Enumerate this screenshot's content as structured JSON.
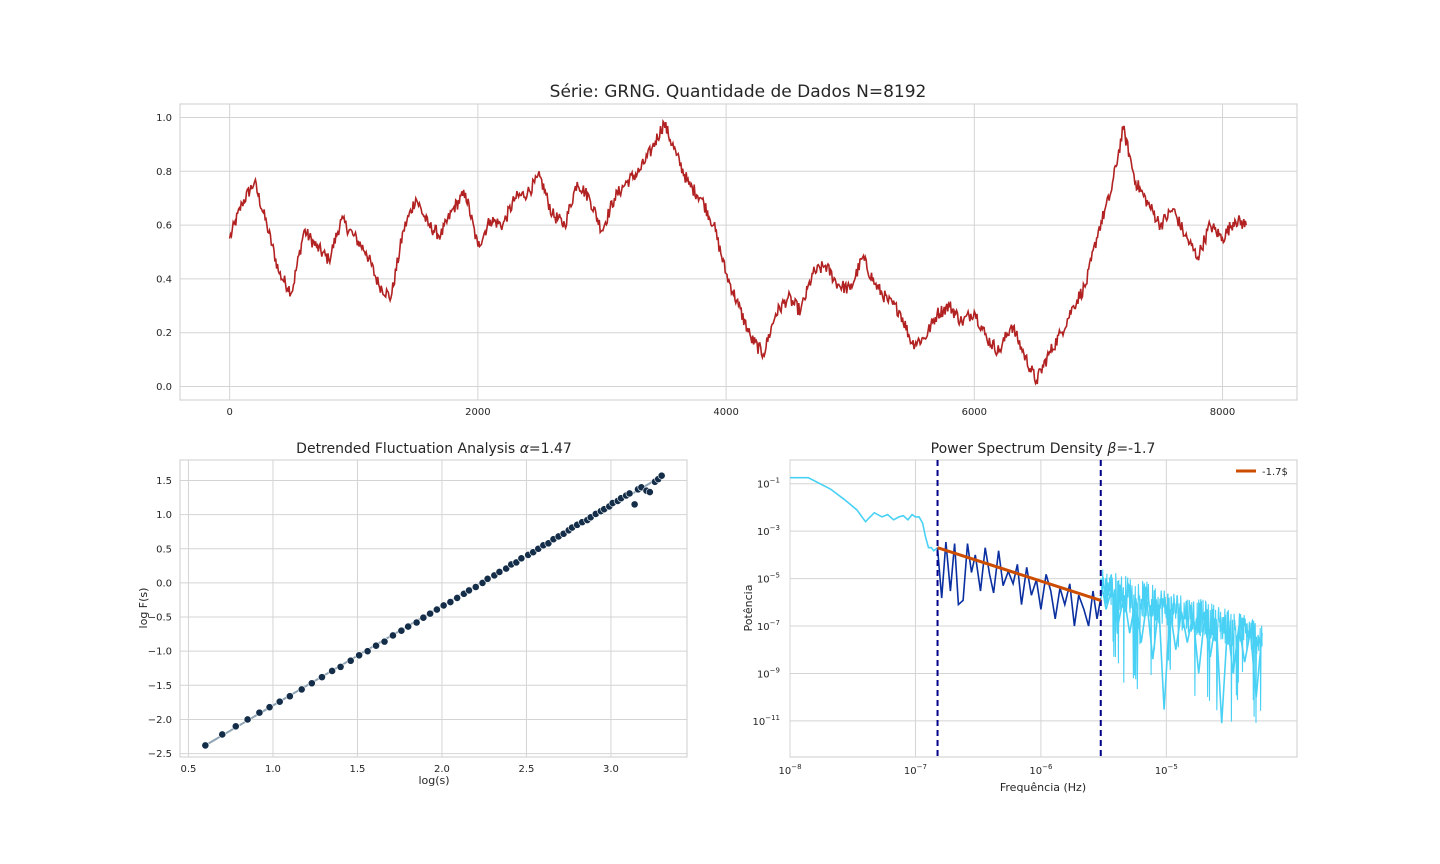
{
  "chart_data": [
    {
      "type": "line",
      "title": "Série: GRNG. Quantidade de Dados N=8192",
      "xlabel": "",
      "ylabel": "",
      "xlim": [
        -400,
        8600
      ],
      "ylim": [
        -0.05,
        1.05
      ],
      "xticks": [
        0,
        2000,
        4000,
        6000,
        8000
      ],
      "yticks": [
        0.0,
        0.2,
        0.4,
        0.6,
        0.8,
        1.0
      ],
      "grid": true,
      "color": "#b22222",
      "series": [
        {
          "x": [
            0,
            100,
            200,
            300,
            400,
            500,
            600,
            700,
            800,
            900,
            1000,
            1100,
            1200,
            1300,
            1400,
            1500,
            1600,
            1700,
            1800,
            1900,
            2000,
            2100,
            2200,
            2300,
            2400,
            2500,
            2600,
            2700,
            2800,
            2900,
            3000,
            3100,
            3200,
            3300,
            3400,
            3500,
            3600,
            3700,
            3800,
            3900,
            4000,
            4100,
            4200,
            4300,
            4400,
            4500,
            4600,
            4700,
            4800,
            4900,
            5000,
            5100,
            5200,
            5300,
            5400,
            5500,
            5600,
            5700,
            5800,
            5900,
            6000,
            6100,
            6200,
            6300,
            6400,
            6500,
            6600,
            6700,
            6800,
            6900,
            7000,
            7100,
            7200,
            7300,
            7400,
            7500,
            7600,
            7700,
            7800,
            7900,
            8000,
            8100,
            8191
          ],
          "values": [
            0.55,
            0.68,
            0.76,
            0.6,
            0.42,
            0.35,
            0.58,
            0.52,
            0.47,
            0.62,
            0.56,
            0.5,
            0.38,
            0.33,
            0.58,
            0.7,
            0.6,
            0.56,
            0.66,
            0.72,
            0.52,
            0.62,
            0.6,
            0.7,
            0.72,
            0.78,
            0.64,
            0.6,
            0.76,
            0.7,
            0.58,
            0.7,
            0.76,
            0.8,
            0.88,
            0.98,
            0.86,
            0.75,
            0.7,
            0.6,
            0.42,
            0.3,
            0.18,
            0.12,
            0.27,
            0.33,
            0.28,
            0.42,
            0.45,
            0.38,
            0.36,
            0.48,
            0.38,
            0.32,
            0.28,
            0.16,
            0.18,
            0.27,
            0.3,
            0.24,
            0.28,
            0.18,
            0.13,
            0.23,
            0.12,
            0.02,
            0.12,
            0.2,
            0.3,
            0.38,
            0.58,
            0.72,
            0.96,
            0.76,
            0.68,
            0.6,
            0.66,
            0.56,
            0.48,
            0.6,
            0.55,
            0.62,
            0.6
          ]
        }
      ]
    },
    {
      "type": "scatter",
      "title": "Detrended Fluctuation Analysis",
      "title_symbol": "α",
      "title_value": "=1.47",
      "xlabel": "log(s)",
      "ylabel": "log F(s)",
      "xlim": [
        0.45,
        3.45
      ],
      "ylim": [
        -2.55,
        1.8
      ],
      "xticks": [
        0.5,
        1.0,
        1.5,
        2.0,
        2.5,
        3.0
      ],
      "yticks": [
        -2.5,
        -2.0,
        -1.5,
        -1.0,
        -0.5,
        0.0,
        0.5,
        1.0,
        1.5
      ],
      "grid": true,
      "fit_line": {
        "x": [
          0.6,
          3.32
        ],
        "y": [
          -2.38,
          1.59
        ],
        "color": "#8fa4b4"
      },
      "point_color": "#142e4a",
      "points": {
        "x": [
          0.6,
          0.7,
          0.78,
          0.85,
          0.92,
          0.98,
          1.04,
          1.1,
          1.17,
          1.23,
          1.29,
          1.35,
          1.4,
          1.46,
          1.51,
          1.56,
          1.61,
          1.66,
          1.71,
          1.76,
          1.8,
          1.85,
          1.89,
          1.93,
          1.97,
          2.01,
          2.05,
          2.09,
          2.13,
          2.16,
          2.2,
          2.24,
          2.27,
          2.31,
          2.34,
          2.38,
          2.41,
          2.44,
          2.47,
          2.51,
          2.54,
          2.57,
          2.6,
          2.63,
          2.66,
          2.69,
          2.72,
          2.75,
          2.77,
          2.8,
          2.83,
          2.86,
          2.88,
          2.91,
          2.94,
          2.96,
          2.99,
          3.01,
          3.04,
          3.06,
          3.09,
          3.11,
          3.14,
          3.16,
          3.18,
          3.21,
          3.23,
          3.26,
          3.28,
          3.3
        ],
        "y": [
          -2.38,
          -2.22,
          -2.1,
          -2.0,
          -1.9,
          -1.82,
          -1.74,
          -1.66,
          -1.56,
          -1.47,
          -1.38,
          -1.29,
          -1.23,
          -1.14,
          -1.06,
          -1.0,
          -0.92,
          -0.86,
          -0.77,
          -0.7,
          -0.64,
          -0.58,
          -0.51,
          -0.45,
          -0.39,
          -0.33,
          -0.28,
          -0.22,
          -0.16,
          -0.11,
          -0.06,
          0.0,
          0.06,
          0.11,
          0.16,
          0.21,
          0.27,
          0.3,
          0.36,
          0.41,
          0.45,
          0.5,
          0.55,
          0.58,
          0.64,
          0.68,
          0.72,
          0.77,
          0.81,
          0.85,
          0.89,
          0.92,
          0.96,
          1.01,
          1.05,
          1.08,
          1.12,
          1.17,
          1.2,
          1.24,
          1.28,
          1.31,
          1.15,
          1.37,
          1.4,
          1.35,
          1.33,
          1.48,
          1.52,
          1.57
        ]
      }
    },
    {
      "type": "line",
      "title": "Power Spectrum Density",
      "title_symbol": "β",
      "title_value": "=-1.7",
      "xlabel": "Frequência (Hz)",
      "ylabel": "Potência",
      "x_scale": "log",
      "y_scale": "log",
      "xlim": [
        1e-08,
        0.00011
      ],
      "ylim": [
        3e-13,
        1.0
      ],
      "xticks": [
        1e-08,
        1e-07,
        1e-06,
        1e-05
      ],
      "xtick_labels": [
        [
          "10",
          "−8"
        ],
        [
          "10",
          "−7"
        ],
        [
          "10",
          "−6"
        ],
        [
          "10",
          "−5"
        ]
      ],
      "yticks": [
        1e-11,
        1e-09,
        1e-07,
        1e-05,
        0.001,
        0.1
      ],
      "ytick_labels": [
        [
          "10",
          "−11"
        ],
        [
          "10",
          "−9"
        ],
        [
          "10",
          "−7"
        ],
        [
          "10",
          "−5"
        ],
        [
          "10",
          "−3"
        ],
        [
          "10",
          "−1"
        ]
      ],
      "grid": true,
      "vlines": [
        1.5e-07,
        3e-06
      ],
      "vline_color": "#00008b",
      "legend": {
        "position": "top-right",
        "label": "-1.7$"
      },
      "fit": {
        "x": [
          1.5e-07,
          3e-06
        ],
        "y": [
          0.0002,
          1.2e-06
        ],
        "color": "#cc4c02"
      },
      "series": [
        {
          "color": "#48d1f5",
          "x": [
            1e-08,
            1.4e-08,
            2.1e-08,
            2.7e-08,
            3.4e-08,
            4e-08,
            4.7e-08,
            5.4e-08,
            6e-08,
            6.7e-08,
            7.4e-08,
            8e-08,
            8.7e-08,
            9.4e-08,
            1e-07,
            1.07e-07,
            1.14e-07,
            1.2e-07,
            1.27e-07,
            1.34e-07,
            1.4e-07,
            1.5e-07
          ],
          "y": [
            0.18,
            0.18,
            0.06,
            0.022,
            0.008,
            0.0025,
            0.006,
            0.004,
            0.005,
            0.003,
            0.004,
            0.0045,
            0.003,
            0.005,
            0.004,
            0.004,
            0.0022,
            0.0006,
            0.0002,
            0.0002,
            0.00015,
            0.0002
          ]
        },
        {
          "color": "#0a2fa0",
          "x": [
            1.5e-07,
            1.62e-07,
            1.75e-07,
            1.9e-07,
            2.05e-07,
            2.2e-07,
            2.4e-07,
            2.6e-07,
            2.8e-07,
            3e-07,
            3.3e-07,
            3.6e-07,
            3.9e-07,
            4.2e-07,
            4.6e-07,
            5e-07,
            5.5e-07,
            6e-07,
            6.5e-07,
            7e-07,
            7.7e-07,
            8.4e-07,
            9.2e-07,
            1e-06,
            1.1e-06,
            1.2e-06,
            1.3e-06,
            1.42e-06,
            1.55e-06,
            1.7e-06,
            1.85e-06,
            2e-06,
            2.2e-06,
            2.4e-06,
            2.6e-06,
            2.8e-06,
            3e-06
          ],
          "y": [
            0.0002,
            1.5e-06,
            0.00035,
            3e-06,
            0.0003,
            8e-07,
            1.2e-06,
            0.0003,
            1.8e-05,
            0.0001,
            3e-06,
            0.0002,
            1.5e-05,
            2.5e-06,
            0.00015,
            5e-06,
            2e-05,
            6e-06,
            4e-05,
            8e-07,
            3e-05,
            2e-06,
            9e-06,
            5e-07,
            1.5e-05,
            3e-06,
            2e-07,
            4e-06,
            8e-07,
            6e-06,
            1e-07,
            2e-06,
            5e-07,
            1e-07,
            3e-06,
            2e-07,
            1.5e-06
          ]
        },
        {
          "color": "#48d1f5",
          "x": [
            3e-06,
            3.3e-06,
            3.7e-06,
            4.1e-06,
            4.6e-06,
            5.1e-06,
            5.7e-06,
            6.3e-06,
            7e-06,
            7.8e-06,
            8.7e-06,
            9.6e-06,
            1.07e-05,
            1.19e-05,
            1.32e-05,
            1.47e-05,
            1.63e-05,
            1.81e-05,
            2.01e-05,
            2.24e-05,
            2.49e-05,
            2.76e-05,
            3.07e-05,
            3.41e-05,
            3.79e-05,
            4.21e-05,
            4.68e-05,
            5.2e-05,
            5.8e-05
          ],
          "y": [
            1e-05,
            5e-07,
            4e-06,
            1e-07,
            2e-06,
            5e-08,
            1.5e-06,
            2e-08,
            1e-06,
            4e-09,
            8e-07,
            3e-11,
            5e-07,
            1e-08,
            4e-07,
            2e-08,
            3e-07,
            1e-09,
            2e-07,
            5e-09,
            2e-07,
            8e-12,
            1e-07,
            1e-09,
            1e-07,
            3e-09,
            6e-08,
            1e-10,
            5e-08
          ]
        }
      ]
    }
  ]
}
